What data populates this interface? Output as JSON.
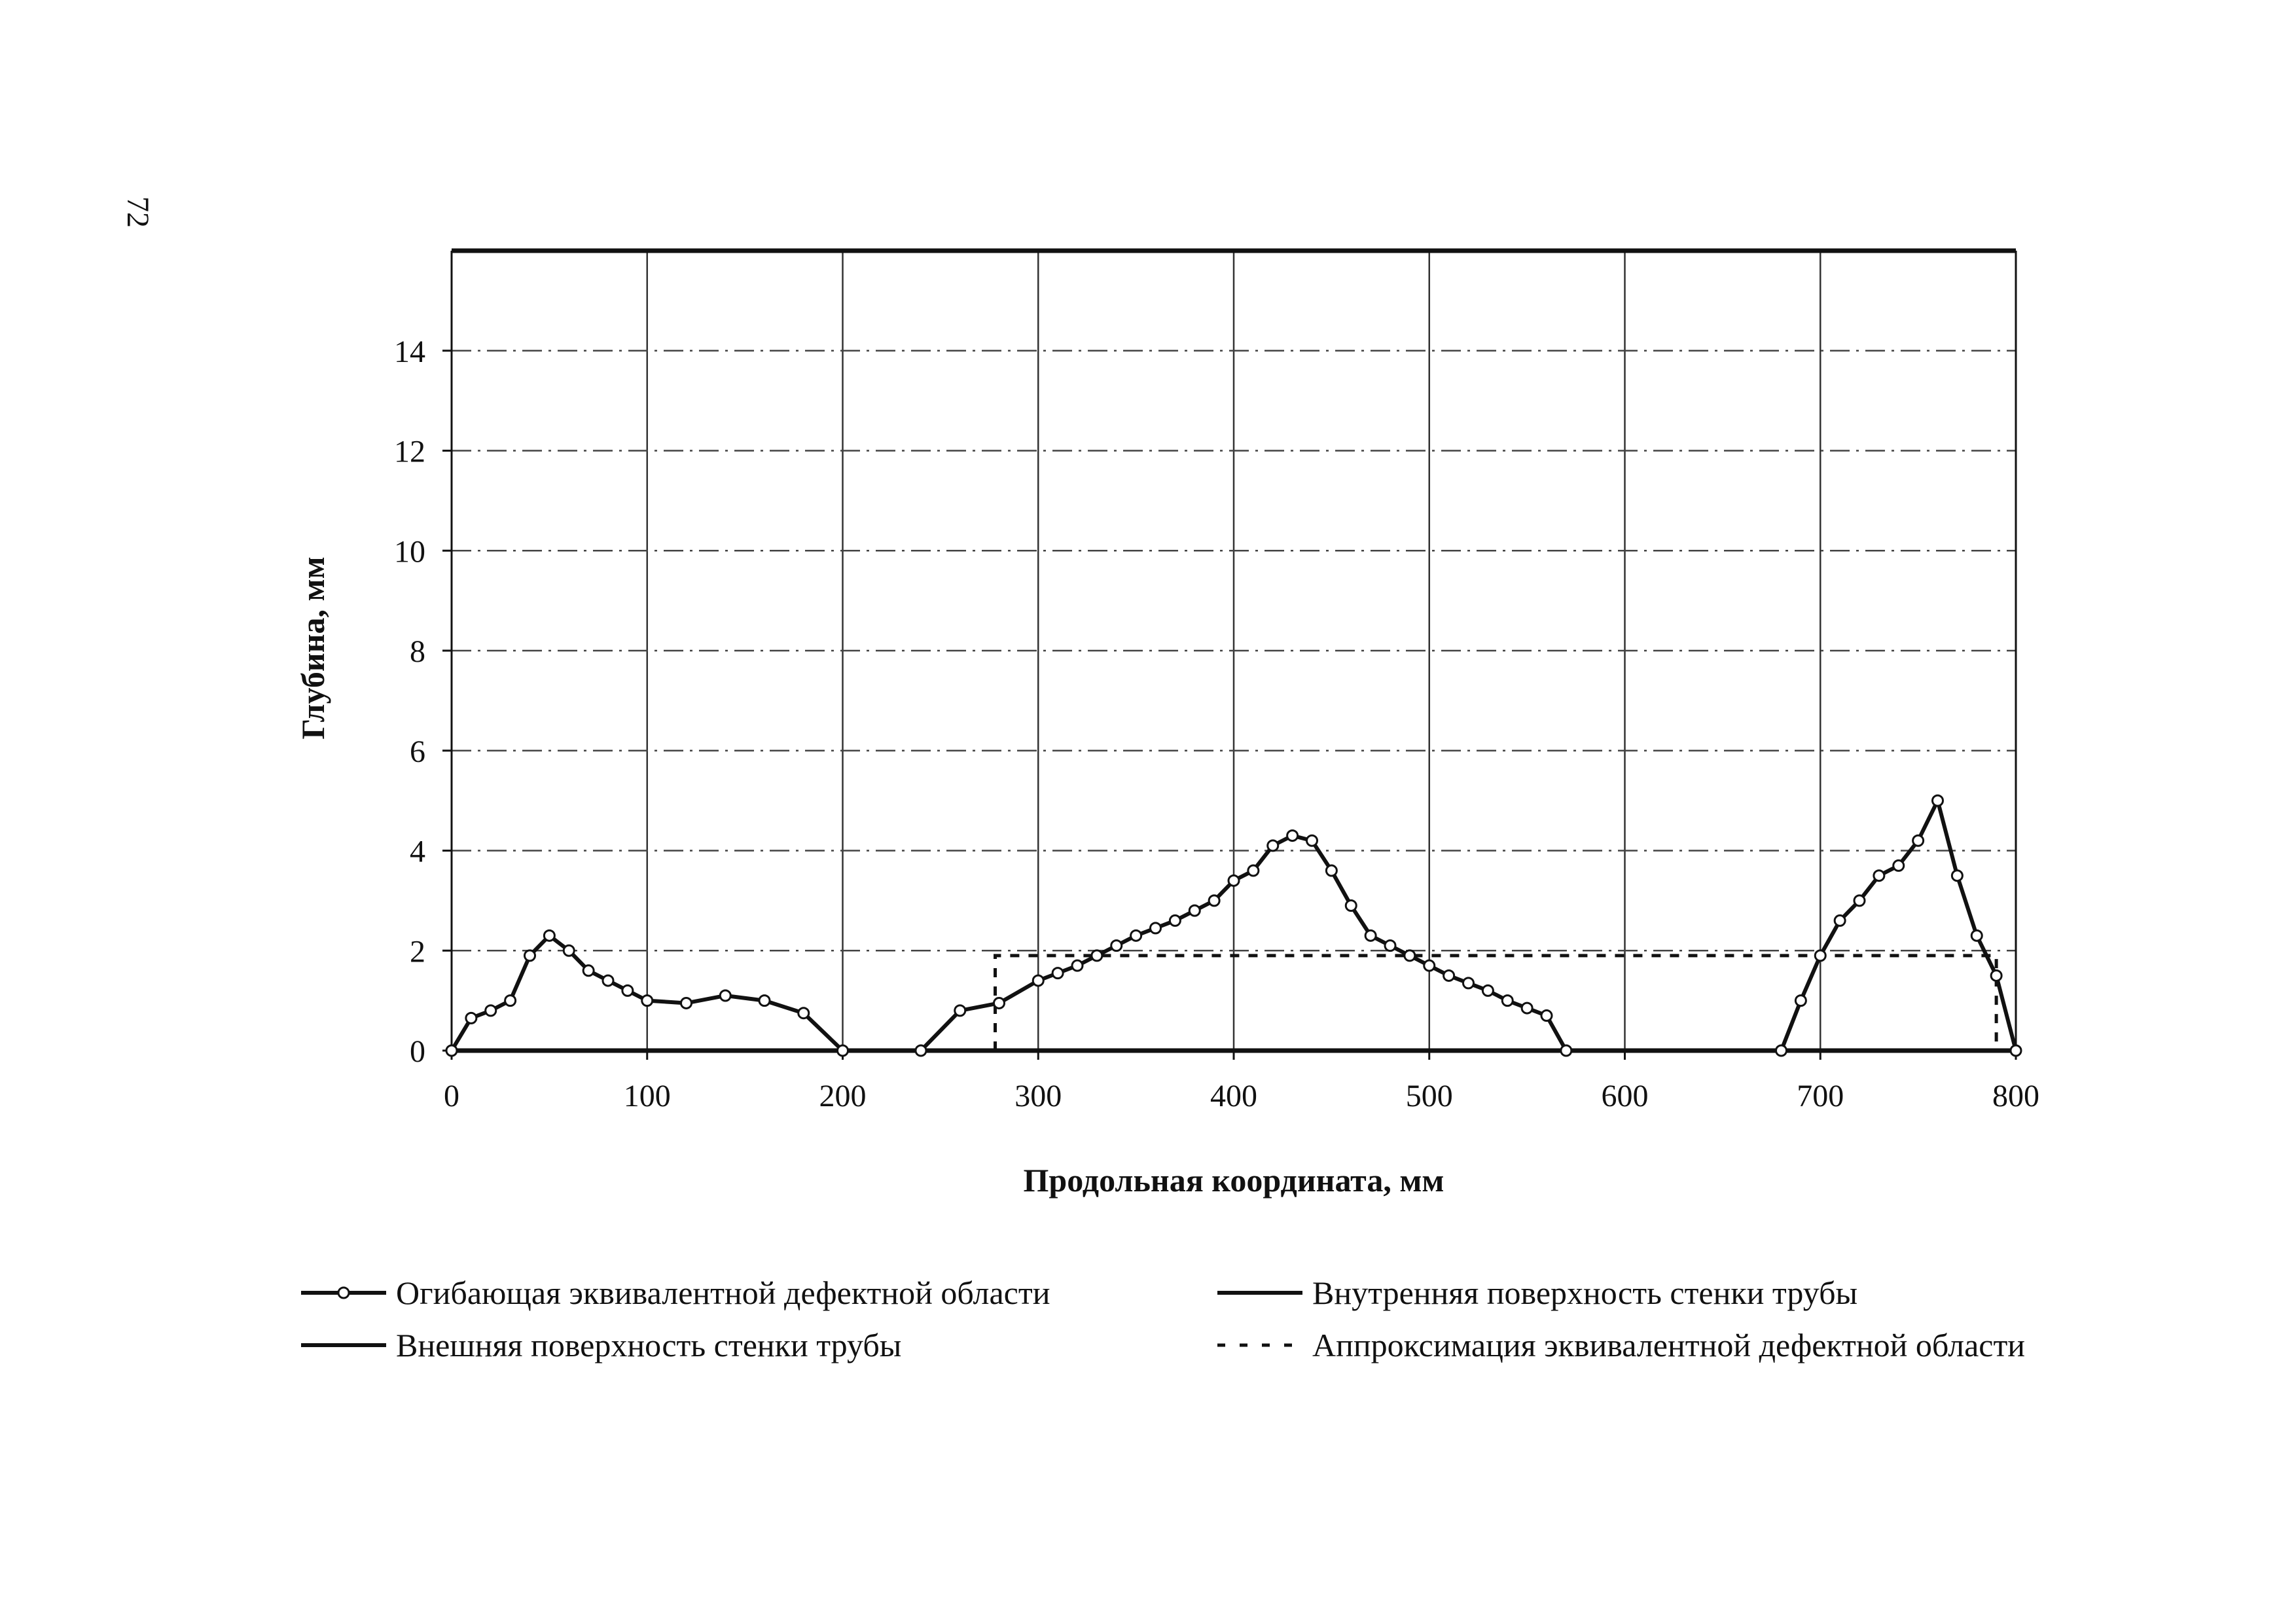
{
  "page_number": "72",
  "chart_data": {
    "type": "line",
    "title": "",
    "xlabel": "Продольная координата, мм",
    "ylabel": "Глубина, мм",
    "xlim": [
      0,
      800
    ],
    "ylim": [
      0,
      16
    ],
    "x_ticks": [
      0,
      100,
      200,
      300,
      400,
      500,
      600,
      700,
      800
    ],
    "y_ticks": [
      0,
      2,
      4,
      6,
      8,
      10,
      12,
      14
    ],
    "grid": true,
    "legend_position": "bottom",
    "series": [
      {
        "name": "Огибающая эквивалентной дефектной области",
        "style": "line-with-circle-markers",
        "color": "#111111",
        "segments": [
          [
            [
              0,
              0
            ],
            [
              10,
              0.65
            ],
            [
              20,
              0.8
            ],
            [
              30,
              1.0
            ],
            [
              40,
              1.9
            ],
            [
              50,
              2.3
            ],
            [
              60,
              2.0
            ],
            [
              70,
              1.6
            ],
            [
              80,
              1.4
            ],
            [
              90,
              1.2
            ],
            [
              100,
              1.0
            ],
            [
              120,
              0.95
            ],
            [
              140,
              1.1
            ],
            [
              160,
              1.0
            ],
            [
              180,
              0.75
            ],
            [
              200,
              0
            ]
          ],
          [
            [
              240,
              0
            ],
            [
              260,
              0.8
            ],
            [
              280,
              0.95
            ],
            [
              300,
              1.4
            ],
            [
              310,
              1.55
            ],
            [
              320,
              1.7
            ],
            [
              330,
              1.9
            ],
            [
              340,
              2.1
            ],
            [
              350,
              2.3
            ],
            [
              360,
              2.45
            ],
            [
              370,
              2.6
            ],
            [
              380,
              2.8
            ],
            [
              390,
              3.0
            ],
            [
              400,
              3.4
            ],
            [
              410,
              3.6
            ],
            [
              420,
              4.1
            ],
            [
              430,
              4.3
            ],
            [
              440,
              4.2
            ],
            [
              450,
              3.6
            ],
            [
              460,
              2.9
            ],
            [
              470,
              2.3
            ],
            [
              480,
              2.1
            ],
            [
              490,
              1.9
            ],
            [
              500,
              1.7
            ],
            [
              510,
              1.5
            ],
            [
              520,
              1.35
            ],
            [
              530,
              1.2
            ],
            [
              540,
              1.0
            ],
            [
              550,
              0.85
            ],
            [
              560,
              0.7
            ],
            [
              570,
              0
            ]
          ],
          [
            [
              680,
              0
            ],
            [
              690,
              1.0
            ],
            [
              700,
              1.9
            ],
            [
              710,
              2.6
            ],
            [
              720,
              3.0
            ],
            [
              730,
              3.5
            ],
            [
              740,
              3.7
            ],
            [
              750,
              4.2
            ],
            [
              760,
              5.0
            ],
            [
              770,
              3.5
            ],
            [
              780,
              2.3
            ],
            [
              790,
              1.5
            ],
            [
              800,
              0
            ]
          ]
        ]
      },
      {
        "name": "Внутренняя поверхность стенки трубы",
        "style": "thick-line",
        "color": "#111111",
        "x": [
          0,
          800
        ],
        "values": [
          16,
          16
        ]
      },
      {
        "name": "Внешняя поверхность стенки трубы",
        "style": "thick-line",
        "color": "#111111",
        "x": [
          0,
          800
        ],
        "values": [
          0,
          0
        ]
      },
      {
        "name": "Аппроксимация эквивалентной дефектной области",
        "style": "dashed-line",
        "color": "#111111",
        "x": [
          278,
          278,
          790,
          790
        ],
        "values": [
          0,
          1.9,
          1.9,
          0
        ]
      }
    ]
  }
}
